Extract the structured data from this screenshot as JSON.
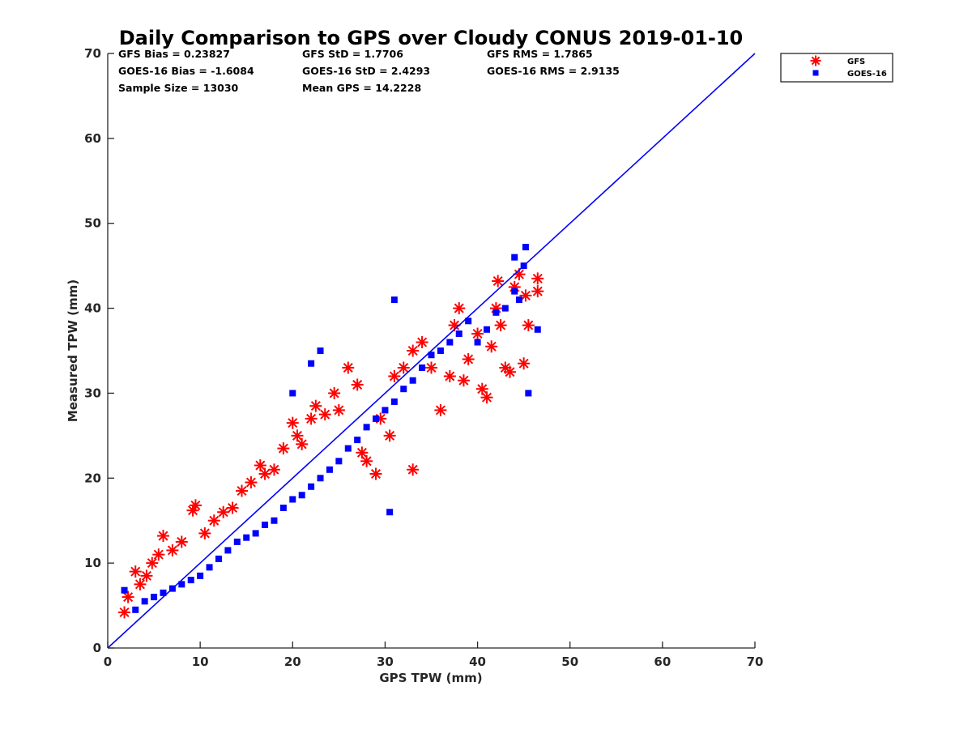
{
  "chart_data": {
    "type": "scatter",
    "title": "Daily Comparison to GPS over Cloudy CONUS 2019-01-10",
    "xlabel": "GPS TPW (mm)",
    "ylabel": "Measured TPW (mm)",
    "xlim": [
      0,
      70
    ],
    "ylim": [
      0,
      70
    ],
    "xticks": [
      "0",
      "10",
      "20",
      "30",
      "40",
      "50",
      "60",
      "70"
    ],
    "yticks": [
      "0",
      "10",
      "20",
      "30",
      "40",
      "50",
      "60",
      "70"
    ],
    "grid": false,
    "legend_position": "outside top-right",
    "stats": [
      "GFS Bias = 0.23827",
      "GFS StD = 1.7706",
      "GFS RMS = 1.7865",
      "GOES-16 Bias = -1.6084",
      "GOES-16 StD = 2.4293",
      "GOES-16 RMS = 2.9135",
      "Sample Size = 13030",
      "Mean GPS = 14.2228"
    ],
    "reference_line": {
      "type": "one-to-one",
      "x": [
        0,
        70
      ],
      "y": [
        0,
        70
      ],
      "color": "#0000ff"
    },
    "series": [
      {
        "name": "GFS",
        "marker": "asterisk",
        "color": "#ff0000",
        "x": [
          1.8,
          2.2,
          3.0,
          3.5,
          4.2,
          4.8,
          5.5,
          6.0,
          7.0,
          8.0,
          9.5,
          9.2,
          10.5,
          11.5,
          12.5,
          13.5,
          14.5,
          15.5,
          16.5,
          17.0,
          18.0,
          19.0,
          20.0,
          20.5,
          21.0,
          22.0,
          22.5,
          23.5,
          24.5,
          25.0,
          26.0,
          27.0,
          27.5,
          28.0,
          29.0,
          29.5,
          30.5,
          31.0,
          32.0,
          33.0,
          33.0,
          34.0,
          35.0,
          36.0,
          37.0,
          37.5,
          38.0,
          38.5,
          39.0,
          40.0,
          40.5,
          41.0,
          41.5,
          42.0,
          42.5,
          43.0,
          43.5,
          44.0,
          44.5,
          45.0,
          45.5,
          46.5,
          46.5,
          42.2,
          45.2
        ],
        "y": [
          4.2,
          6.0,
          9.0,
          7.5,
          8.5,
          10.0,
          11.0,
          13.2,
          11.5,
          12.5,
          16.8,
          16.2,
          13.5,
          15.0,
          16.0,
          16.5,
          18.5,
          19.5,
          21.5,
          20.5,
          21.0,
          23.5,
          26.5,
          25.0,
          24.0,
          27.0,
          28.5,
          27.5,
          30.0,
          28.0,
          33.0,
          31.0,
          23.0,
          22.0,
          20.5,
          27.0,
          25.0,
          32.0,
          33.0,
          21.0,
          35.0,
          36.0,
          33.0,
          28.0,
          32.0,
          38.0,
          40.0,
          31.5,
          34.0,
          37.0,
          30.5,
          29.5,
          35.5,
          40.0,
          38.0,
          33.0,
          32.5,
          42.5,
          44.0,
          33.5,
          38.0,
          42.0,
          43.5,
          43.2,
          41.5
        ]
      },
      {
        "name": "GOES-16",
        "marker": "square",
        "color": "#0000ff",
        "x": [
          1.8,
          3.0,
          4.0,
          5.0,
          6.0,
          7.0,
          8.0,
          9.0,
          10.0,
          11.0,
          12.0,
          13.0,
          14.0,
          15.0,
          16.0,
          17.0,
          18.0,
          19.0,
          20.0,
          21.0,
          22.0,
          23.0,
          24.0,
          25.0,
          26.0,
          27.0,
          28.0,
          29.0,
          30.0,
          31.0,
          32.0,
          33.0,
          34.0,
          35.0,
          36.0,
          37.0,
          38.0,
          39.0,
          40.0,
          41.0,
          42.0,
          43.0,
          44.0,
          44.5,
          45.0,
          45.2,
          45.5,
          46.5,
          22.0,
          23.0,
          30.5,
          31.0,
          44.0,
          20.0
        ],
        "y": [
          6.8,
          4.5,
          5.5,
          6.0,
          6.5,
          7.0,
          7.5,
          8.0,
          8.5,
          9.5,
          10.5,
          11.5,
          12.5,
          13.0,
          13.5,
          14.5,
          15.0,
          16.5,
          17.5,
          18.0,
          19.0,
          20.0,
          21.0,
          22.0,
          23.5,
          24.5,
          26.0,
          27.0,
          28.0,
          29.0,
          30.5,
          31.5,
          33.0,
          34.5,
          35.0,
          36.0,
          37.0,
          38.5,
          36.0,
          37.5,
          39.5,
          40.0,
          46.0,
          41.0,
          45.0,
          47.2,
          30.0,
          37.5,
          33.5,
          35.0,
          16.0,
          41.0,
          42.0,
          30.0
        ]
      }
    ]
  }
}
